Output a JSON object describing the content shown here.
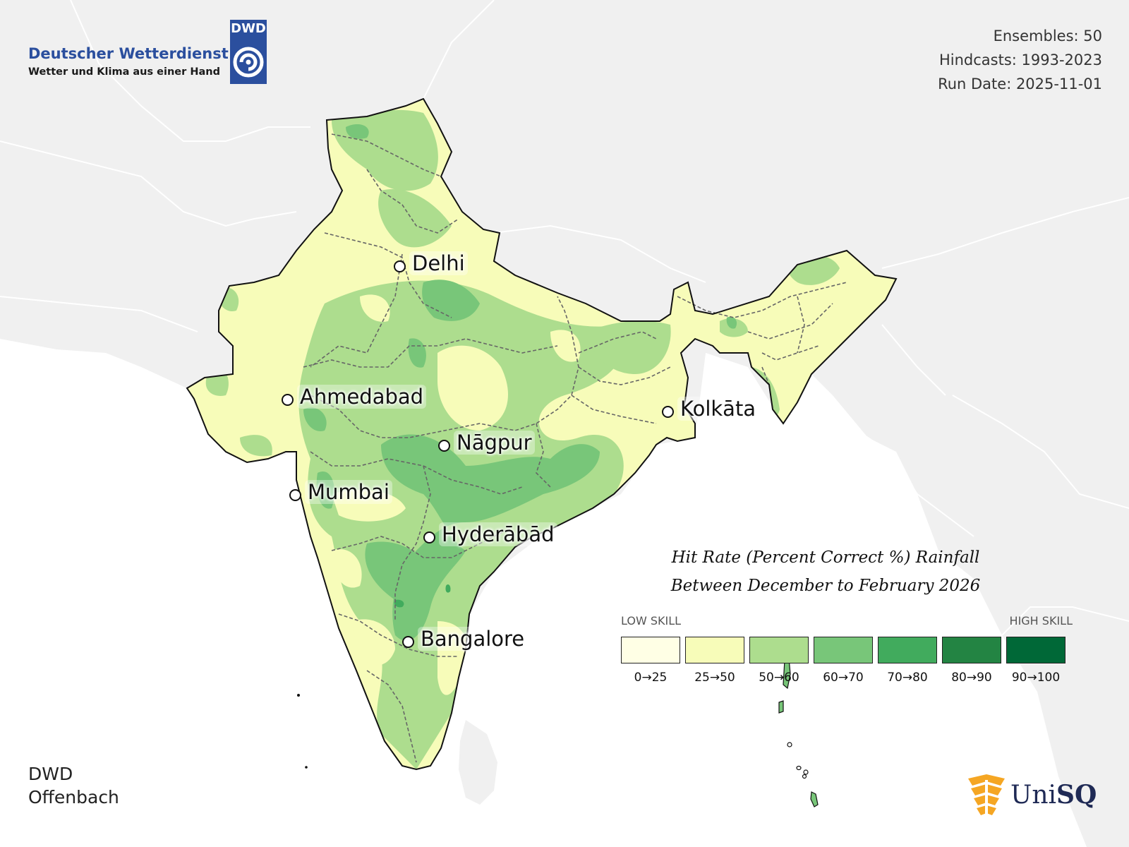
{
  "header": {
    "org_name": "Deutscher Wetterdienst",
    "org_tagline": "Wetter und Klima aus einer Hand",
    "badge_text": "DWD"
  },
  "run_info": {
    "ensembles": "Ensembles: 50",
    "hindcasts": "Hindcasts: 1993-2023",
    "run_date": "Run Date: 2025-11-01"
  },
  "title": {
    "line1": "Hit Rate (Percent Correct %) Rainfall",
    "line2": "Between December to February 2026"
  },
  "legend": {
    "low_label": "LOW SKILL",
    "high_label": "HIGH SKILL",
    "bins": [
      {
        "label": "0→25",
        "color": "#ffffe5"
      },
      {
        "label": "25→50",
        "color": "#f7fcb9"
      },
      {
        "label": "50→60",
        "color": "#addd8e"
      },
      {
        "label": "60→70",
        "color": "#78c679"
      },
      {
        "label": "70→80",
        "color": "#41ab5d"
      },
      {
        "label": "80→90",
        "color": "#238443"
      },
      {
        "label": "90→100",
        "color": "#006837"
      }
    ]
  },
  "cities": [
    {
      "name": "Delhi"
    },
    {
      "name": "Ahmedabad"
    },
    {
      "name": "Kolkāta"
    },
    {
      "name": "Nāgpur"
    },
    {
      "name": "Mumbai"
    },
    {
      "name": "Hyderābād"
    },
    {
      "name": "Bangalore"
    }
  ],
  "footer": {
    "line1": "DWD",
    "line2": "Offenbach"
  },
  "partner_logo": {
    "text_a": "Uni",
    "text_b": "SQ"
  },
  "colors": {
    "background_land": "#f0f0f0",
    "ocean": "#ffffff",
    "brand_blue": "#2b4f9e",
    "unisq_orange": "#f5a623",
    "unisq_navy": "#1f2a55"
  }
}
